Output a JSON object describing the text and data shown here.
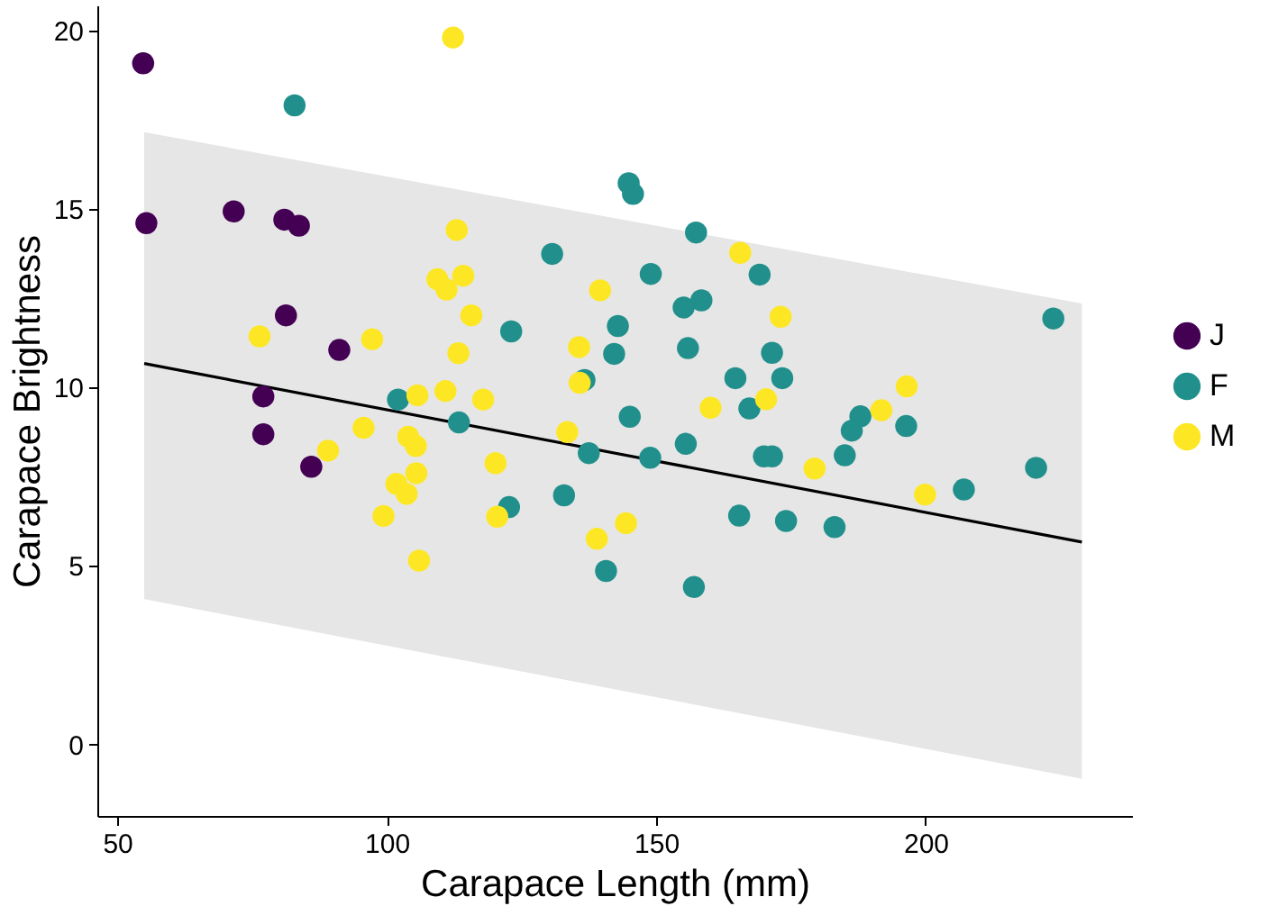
{
  "chart_data": {
    "type": "scatter",
    "xlabel": "Carapace Length (mm)",
    "ylabel": "Carapace Brightness",
    "xlim": [
      46.3,
      238.3
    ],
    "ylim": [
      -2.0,
      20.7
    ],
    "xticks": [
      50,
      100,
      150,
      200
    ],
    "yticks": [
      0,
      5,
      10,
      15,
      20
    ],
    "grid": false,
    "legend": "right",
    "marker": "circle",
    "series": [
      {
        "type": "line",
        "marker": "none",
        "color": "#000000",
        "x": [
          55,
          229
        ],
        "values": [
          10.67,
          5.67
        ],
        "lower": [
          4.07,
          -0.96
        ],
        "upper": [
          17.15,
          12.35
        ]
      },
      {
        "name": "J",
        "color": "#440154",
        "x": [
          54.8,
          55.4,
          71.6,
          81,
          83.7,
          81.3,
          91.2,
          77.1,
          77.1,
          86
        ],
        "values": [
          19.08,
          14.6,
          14.93,
          14.7,
          14.53,
          12.02,
          11.05,
          9.75,
          8.69,
          7.78
        ]
      },
      {
        "name": "F",
        "color": "#21908c",
        "x": [
          82.9,
          102.1,
          144.9,
          145.7,
          157.4,
          130.7,
          149,
          155.1,
          158.4,
          123.1,
          142.9,
          142.2,
          155.9,
          136.7,
          145.1,
          113.4,
          137.5,
          148.9,
          155.5,
          122.7,
          132.9,
          140.7,
          157,
          169.2,
          223.7,
          171.5,
          164.7,
          173.4,
          167.3,
          187.9,
          186.3,
          196.4,
          170,
          171.5,
          185,
          207.1,
          220.5,
          165.4,
          174.1,
          183.1
        ],
        "values": [
          17.9,
          9.66,
          15.72,
          15.42,
          14.34,
          13.74,
          13.18,
          12.24,
          12.44,
          11.57,
          11.72,
          10.94,
          11.1,
          10.21,
          9.18,
          9.02,
          8.16,
          8.03,
          8.42,
          6.65,
          6.98,
          4.86,
          4.41,
          13.16,
          11.93,
          10.97,
          10.26,
          10.26,
          9.41,
          9.19,
          8.79,
          8.92,
          8.07,
          8.07,
          8.1,
          7.14,
          7.75,
          6.41,
          6.26,
          6.09
        ]
      },
      {
        "name": "M",
        "color": "#fde725",
        "x": [
          76.4,
          97.3,
          105.7,
          95.7,
          104,
          89.1,
          105.4,
          105.5,
          101.8,
          103.7,
          99.4,
          106,
          112.3,
          113,
          139.6,
          109.4,
          111.1,
          114.2,
          115.7,
          113.3,
          135.7,
          135.8,
          110.9,
          117.9,
          133.5,
          120.2,
          120.5,
          139,
          144.4,
          165.6,
          173.1,
          196.5,
          160.1,
          170.4,
          191.8,
          179.4,
          199.9
        ],
        "values": [
          11.43,
          11.35,
          9.78,
          8.87,
          8.62,
          8.23,
          8.36,
          7.6,
          7.3,
          7.02,
          6.4,
          5.15,
          19.8,
          14.41,
          12.72,
          13.03,
          12.74,
          13.13,
          12.02,
          10.96,
          11.13,
          10.13,
          9.9,
          9.66,
          8.75,
          7.88,
          6.38,
          5.76,
          6.2,
          13.77,
          11.98,
          10.03,
          9.43,
          9.67,
          9.36,
          7.73,
          7.0
        ]
      }
    ]
  }
}
